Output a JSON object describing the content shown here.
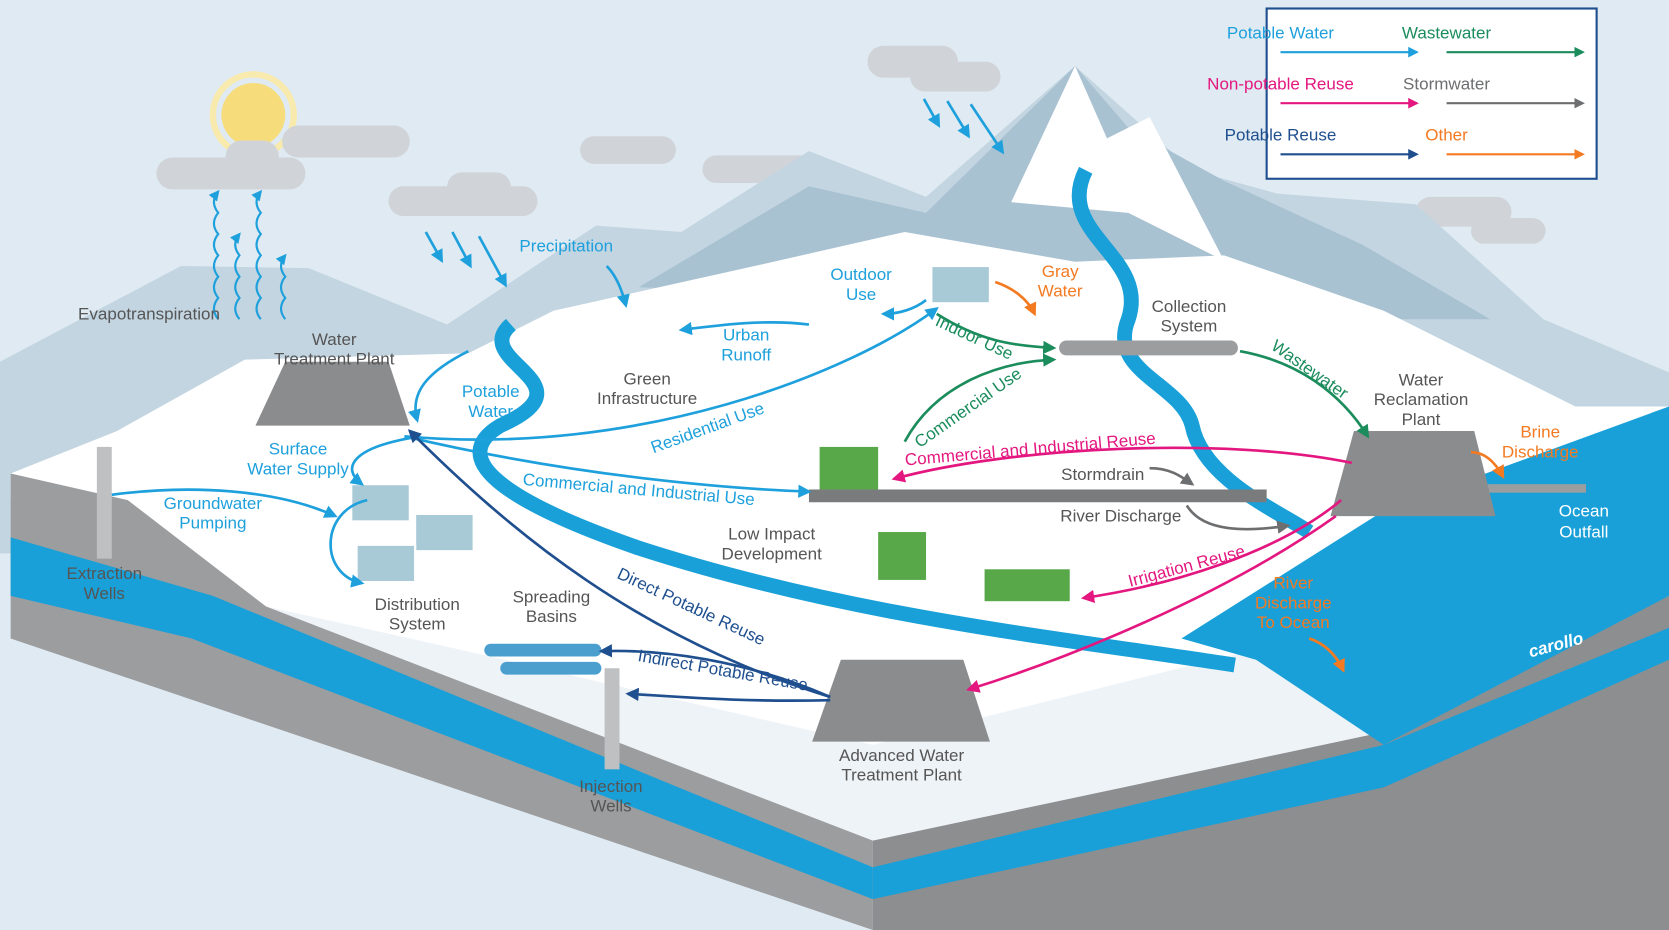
{
  "legend": {
    "items": [
      {
        "label": "Potable Water",
        "color": "#1ea0dc"
      },
      {
        "label": "Wastewater",
        "color": "#1b8c5c"
      },
      {
        "label": "Non-potable Reuse",
        "color": "#e3177f"
      },
      {
        "label": "Stormwater",
        "color": "#6d6e70"
      },
      {
        "label": "Potable Reuse",
        "color": "#1f4f8f"
      },
      {
        "label": "Other",
        "color": "#f37a21"
      }
    ]
  },
  "labels": {
    "evapotranspiration": [
      "Evapotranspiration"
    ],
    "water_treatment_plant": [
      "Water",
      "Treatment Plant"
    ],
    "precipitation": [
      "Precipitation"
    ],
    "potable_water": [
      "Potable",
      "Water"
    ],
    "surface_water_supply": [
      "Surface",
      "Water Supply"
    ],
    "groundwater_pumping": [
      "Groundwater",
      "Pumping"
    ],
    "extraction_wells": [
      "Extraction",
      "Wells"
    ],
    "distribution_system": [
      "Distribution",
      "System"
    ],
    "spreading_basins": [
      "Spreading",
      "Basins"
    ],
    "injection_wells": [
      "Injection",
      "Wells"
    ],
    "advanced_water_treatment_plant": [
      "Advanced Water",
      "Treatment Plant"
    ],
    "green_infrastructure": [
      "Green",
      "Infrastructure"
    ],
    "urban_runoff": [
      "Urban",
      "Runoff"
    ],
    "outdoor_use": [
      "Outdoor",
      "Use"
    ],
    "gray_water": [
      "Gray",
      "Water"
    ],
    "indoor_use": [
      "Indoor Use"
    ],
    "collection_system": [
      "Collection",
      "System"
    ],
    "wastewater": [
      "Wastewater"
    ],
    "water_reclamation_plant": [
      "Water",
      "Reclamation",
      "Plant"
    ],
    "brine_discharge": [
      "Brine",
      "Discharge"
    ],
    "ocean_outfall": [
      "Ocean",
      "Outfall"
    ],
    "residential_use": [
      "Residential Use"
    ],
    "commercial_use": [
      "Commercial Use"
    ],
    "commercial_industrial_use": [
      "Commercial and Industrial Use"
    ],
    "commercial_industrial_reuse": [
      "Commercial and Industrial Reuse"
    ],
    "stormdrain": [
      "Stormdrain"
    ],
    "river_discharge": [
      "River Discharge"
    ],
    "low_impact_development": [
      "Low Impact",
      "Development"
    ],
    "irrigation_reuse": [
      "Irrigation Reuse"
    ],
    "river_discharge_to_ocean": [
      "River",
      "Discharge",
      "To Ocean"
    ],
    "direct_potable_reuse": [
      "Direct Potable Reuse"
    ],
    "indirect_potable_reuse": [
      "Indirect Potable Reuse"
    ]
  },
  "brand": "carollo"
}
